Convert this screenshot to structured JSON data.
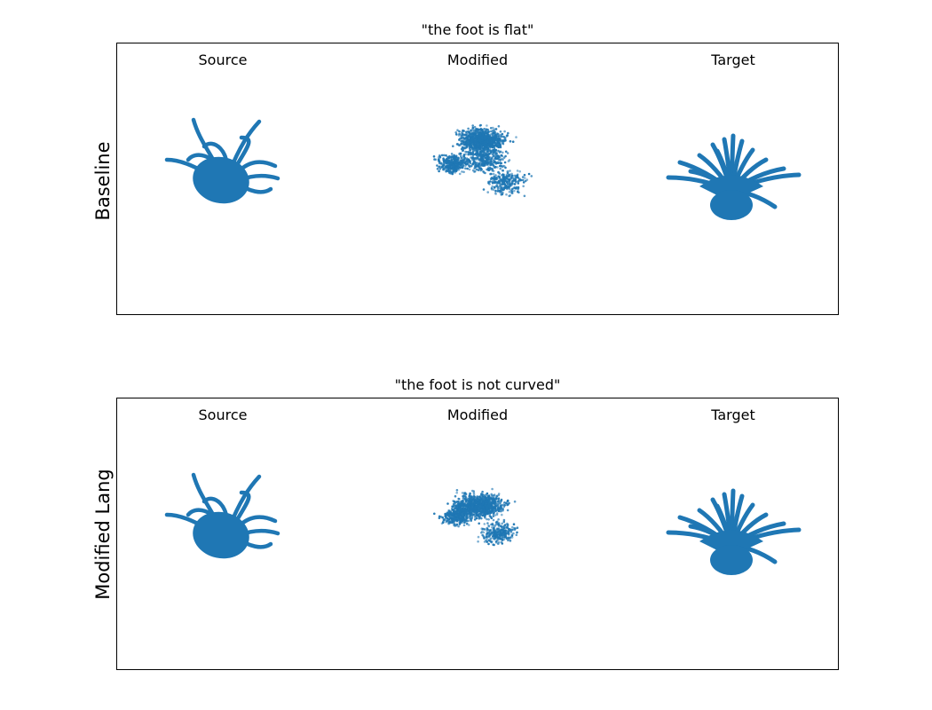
{
  "figure": {
    "accent_color": "#1f77b4",
    "rows": [
      {
        "title": "\"the foot is flat\"",
        "row_label": "Baseline",
        "columns": [
          "Source",
          "Modified",
          "Target"
        ]
      },
      {
        "title": "\"the foot is not curved\"",
        "row_label": "Modified Lang",
        "columns": [
          "Source",
          "Modified",
          "Target"
        ]
      }
    ]
  }
}
